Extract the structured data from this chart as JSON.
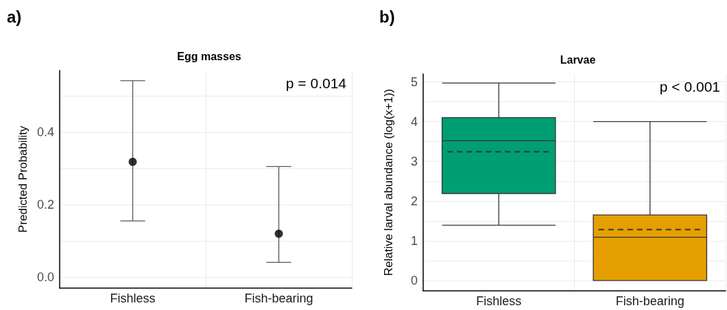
{
  "chart_data": [
    {
      "type": "scatter",
      "title": "Egg masses",
      "ylabel": "Predicted Probability",
      "categories": [
        "Fishless",
        "Fish-bearing"
      ],
      "values": [
        0.318,
        0.12
      ],
      "errors": [
        [
          0.155,
          0.542
        ],
        [
          0.041,
          0.305
        ]
      ],
      "color": "#000000",
      "marker": "circle",
      "ylim": [
        -0.03,
        0.57
      ],
      "yticks": [
        {
          "value": 0,
          "label": "0.0"
        },
        {
          "value": 0.1,
          "label": null
        },
        0.2,
        {
          "value": 0.3,
          "label": null
        },
        0.4,
        {
          "value": 0.5,
          "label": null
        }
      ],
      "grid": true,
      "annotations": [
        "a)",
        "p = 0.014"
      ]
    },
    {
      "type": "box",
      "title": "Larvae",
      "ylabel": "Relative larval abundance (log(x+1))",
      "categories": [
        "Fishless",
        "Fish-bearing"
      ],
      "boxes": [
        {
          "low": 1.39,
          "q1": 2.19,
          "median": 3.52,
          "q3": 4.1,
          "high": 4.97,
          "mean": 3.24
        },
        {
          "low": 0,
          "q1": 0,
          "median": 1.09,
          "q3": 1.65,
          "high": 4.0,
          "mean": 1.28
        }
      ],
      "colors": [
        "#009e73",
        "#e69f00"
      ],
      "ylim": [
        -0.26,
        5.2
      ],
      "yticks": [
        0,
        {
          "value": 0.5,
          "label": null
        },
        1,
        {
          "value": 1.5,
          "label": null
        },
        2,
        {
          "value": 2.5,
          "label": null
        },
        3,
        {
          "value": 3.5,
          "label": null
        },
        4,
        {
          "value": 4.5,
          "label": null
        },
        5
      ],
      "grid": true,
      "annotations": [
        "b)",
        "p < 0.001"
      ]
    }
  ]
}
